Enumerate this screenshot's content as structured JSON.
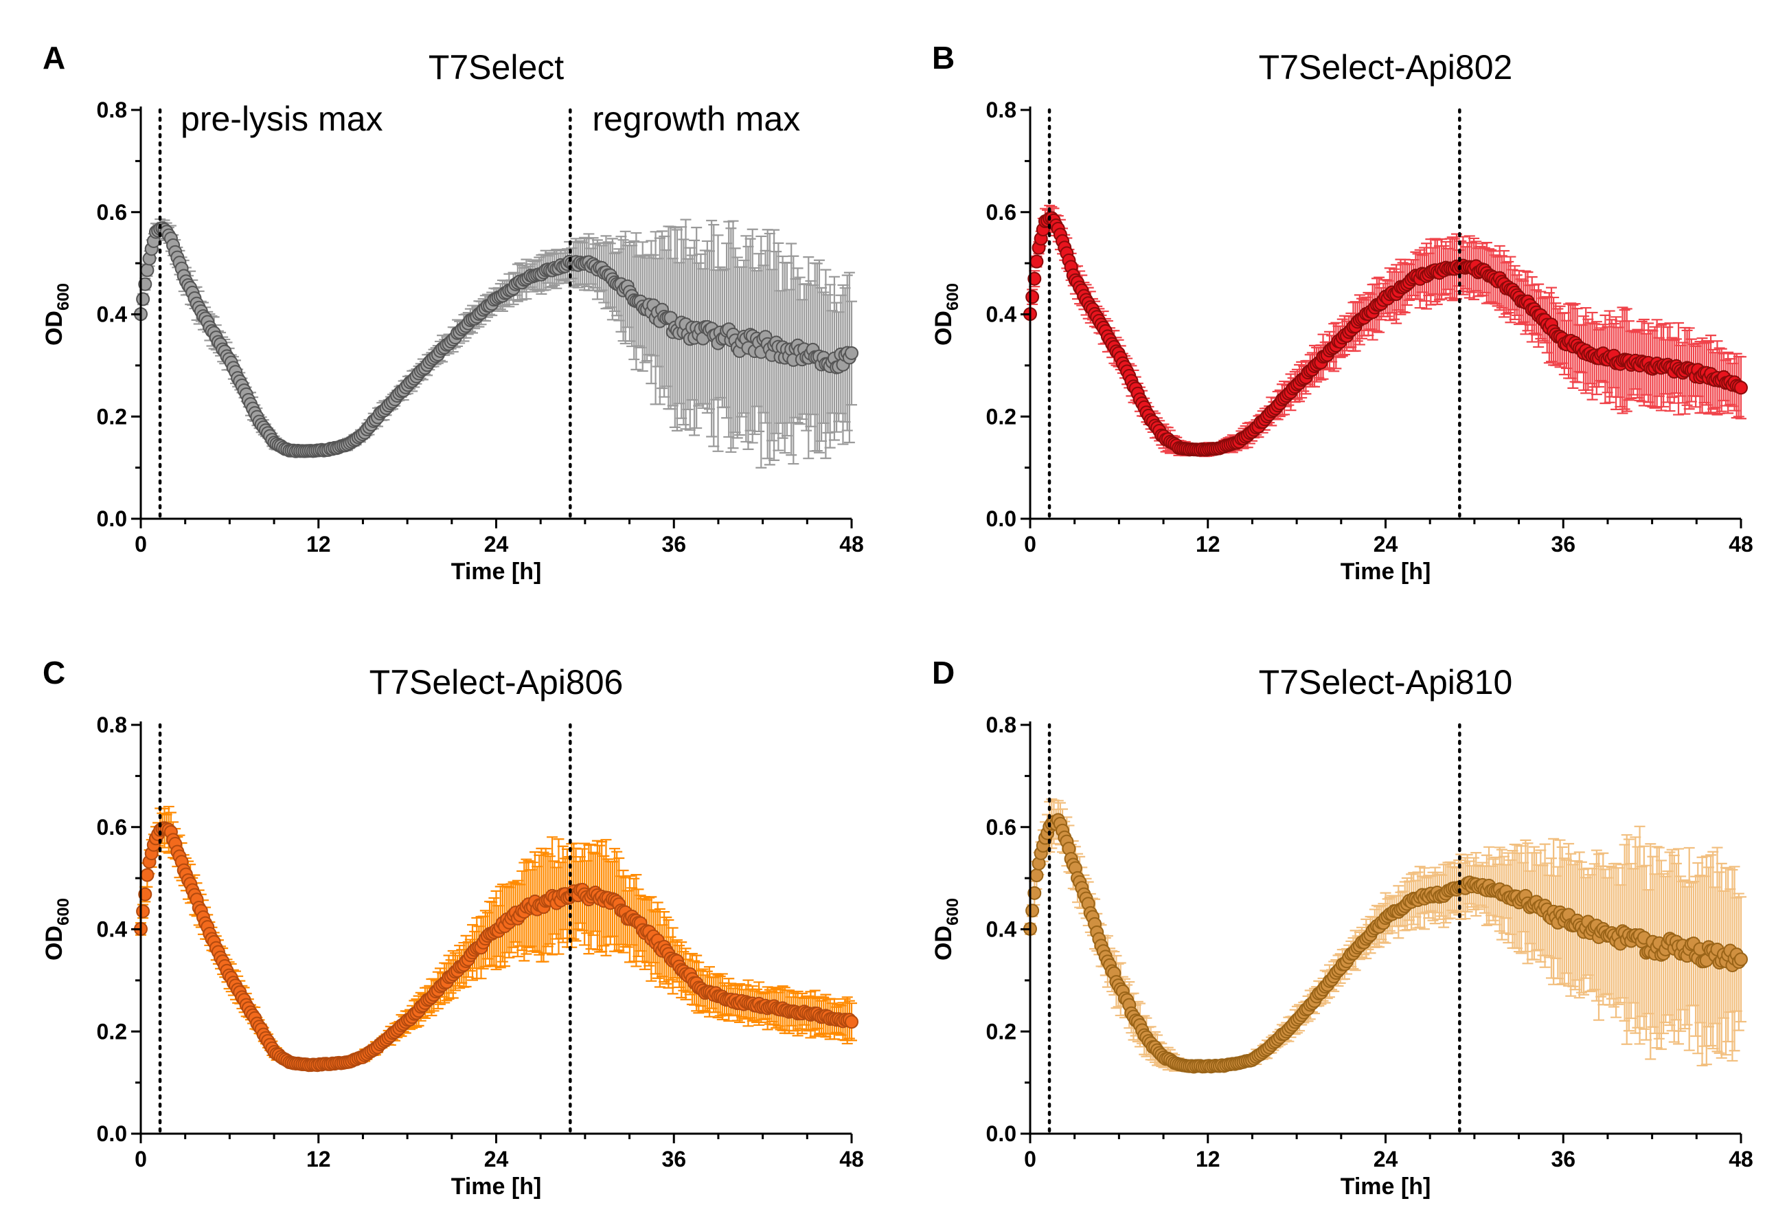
{
  "figure": {
    "panels": [
      {
        "letter": "A",
        "title": "T7Select",
        "annotations": [
          "pre-lysis max",
          "regrowth max"
        ],
        "colors": {
          "fill": "#a0a0a0",
          "stroke": "#555555",
          "err": "#9a9a9a"
        }
      },
      {
        "letter": "B",
        "title": "T7Select-Api802",
        "annotations": [],
        "colors": {
          "fill": "#e8141e",
          "stroke": "#8a0a0a",
          "err": "#f0434a"
        }
      },
      {
        "letter": "C",
        "title": "T7Select-Api806",
        "annotations": [],
        "colors": {
          "fill": "#f36a1c",
          "stroke": "#b34a0e",
          "err": "#ff8a00"
        }
      },
      {
        "letter": "D",
        "title": "T7Select-Api810",
        "annotations": [],
        "colors": {
          "fill": "#d09040",
          "stroke": "#9a6418",
          "err": "#f2bf7f"
        }
      }
    ]
  },
  "chart_data": [
    {
      "type": "scatter",
      "title": "T7Select",
      "xlabel": "Time [h]",
      "ylabel": "OD600",
      "xlim": [
        0,
        48
      ],
      "ylim": [
        0,
        0.8
      ],
      "xticks": [
        0,
        12,
        24,
        36,
        48
      ],
      "yticks": [
        0.0,
        0.2,
        0.4,
        0.6,
        0.8
      ],
      "reference_lines_x": [
        1.3,
        29.0
      ],
      "annotations": [
        "pre-lysis max",
        "regrowth max"
      ],
      "series": [
        {
          "name": "T7Select",
          "x": [
            0,
            0.5,
            1,
            1.5,
            2,
            3,
            4,
            5,
            6,
            7,
            8,
            9,
            10,
            11,
            12,
            13,
            14,
            15,
            16,
            18,
            20,
            22,
            24,
            26,
            28,
            29,
            30,
            31,
            32,
            34,
            36,
            38,
            40,
            42,
            44,
            46,
            48
          ],
          "y": [
            0.4,
            0.5,
            0.56,
            0.57,
            0.55,
            0.47,
            0.41,
            0.36,
            0.31,
            0.25,
            0.19,
            0.15,
            0.133,
            0.132,
            0.133,
            0.137,
            0.145,
            0.165,
            0.2,
            0.26,
            0.32,
            0.38,
            0.43,
            0.47,
            0.49,
            0.5,
            0.5,
            0.49,
            0.47,
            0.42,
            0.38,
            0.36,
            0.35,
            0.34,
            0.33,
            0.31,
            0.31
          ],
          "err": [
            0.01,
            0.015,
            0.015,
            0.015,
            0.02,
            0.025,
            0.025,
            0.025,
            0.02,
            0.02,
            0.015,
            0.01,
            0.005,
            0.005,
            0.005,
            0.005,
            0.01,
            0.01,
            0.015,
            0.015,
            0.02,
            0.02,
            0.025,
            0.03,
            0.03,
            0.035,
            0.04,
            0.05,
            0.07,
            0.12,
            0.15,
            0.17,
            0.18,
            0.18,
            0.17,
            0.15,
            0.13
          ]
        }
      ]
    },
    {
      "type": "scatter",
      "title": "T7Select-Api802",
      "xlabel": "Time [h]",
      "ylabel": "OD600",
      "xlim": [
        0,
        48
      ],
      "ylim": [
        0,
        0.8
      ],
      "xticks": [
        0,
        12,
        24,
        36,
        48
      ],
      "yticks": [
        0.0,
        0.2,
        0.4,
        0.6,
        0.8
      ],
      "reference_lines_x": [
        1.3,
        29.0
      ],
      "series": [
        {
          "name": "T7Select-Api802",
          "x": [
            0,
            0.5,
            1,
            1.5,
            2,
            3,
            4,
            5,
            6,
            7,
            8,
            9,
            10,
            11,
            12,
            13,
            14,
            15,
            16,
            18,
            20,
            22,
            24,
            26,
            28,
            29,
            30,
            31,
            32,
            34,
            36,
            38,
            40,
            42,
            44,
            46,
            48
          ],
          "y": [
            0.4,
            0.52,
            0.58,
            0.59,
            0.56,
            0.47,
            0.42,
            0.37,
            0.32,
            0.26,
            0.2,
            0.16,
            0.14,
            0.135,
            0.135,
            0.14,
            0.15,
            0.17,
            0.2,
            0.26,
            0.32,
            0.38,
            0.43,
            0.47,
            0.49,
            0.49,
            0.49,
            0.48,
            0.46,
            0.41,
            0.35,
            0.32,
            0.31,
            0.3,
            0.29,
            0.28,
            0.26
          ],
          "err": [
            0.01,
            0.015,
            0.02,
            0.02,
            0.025,
            0.025,
            0.025,
            0.025,
            0.025,
            0.025,
            0.02,
            0.02,
            0.015,
            0.01,
            0.01,
            0.01,
            0.015,
            0.02,
            0.02,
            0.03,
            0.035,
            0.04,
            0.045,
            0.05,
            0.05,
            0.05,
            0.05,
            0.05,
            0.05,
            0.05,
            0.06,
            0.07,
            0.08,
            0.07,
            0.07,
            0.06,
            0.05
          ]
        }
      ]
    },
    {
      "type": "scatter",
      "title": "T7Select-Api806",
      "xlabel": "Time [h]",
      "ylabel": "OD600",
      "xlim": [
        0,
        48
      ],
      "ylim": [
        0,
        0.8
      ],
      "xticks": [
        0,
        12,
        24,
        36,
        48
      ],
      "yticks": [
        0.0,
        0.2,
        0.4,
        0.6,
        0.8
      ],
      "reference_lines_x": [
        1.3,
        29.0
      ],
      "series": [
        {
          "name": "T7Select-Api806",
          "x": [
            0,
            0.5,
            1,
            1.5,
            2,
            3,
            4,
            5,
            6,
            7,
            8,
            9,
            10,
            11,
            12,
            13,
            14,
            15,
            16,
            18,
            20,
            22,
            24,
            26,
            28,
            29,
            30,
            31,
            32,
            34,
            36,
            38,
            40,
            42,
            44,
            46,
            48
          ],
          "y": [
            0.4,
            0.52,
            0.58,
            0.6,
            0.59,
            0.51,
            0.44,
            0.37,
            0.31,
            0.26,
            0.21,
            0.16,
            0.14,
            0.135,
            0.135,
            0.137,
            0.14,
            0.15,
            0.17,
            0.22,
            0.28,
            0.34,
            0.4,
            0.44,
            0.46,
            0.47,
            0.47,
            0.46,
            0.45,
            0.4,
            0.34,
            0.28,
            0.26,
            0.25,
            0.24,
            0.23,
            0.22
          ],
          "err": [
            0.01,
            0.02,
            0.03,
            0.035,
            0.035,
            0.03,
            0.03,
            0.025,
            0.025,
            0.02,
            0.015,
            0.01,
            0.005,
            0.005,
            0.005,
            0.005,
            0.005,
            0.01,
            0.01,
            0.02,
            0.03,
            0.04,
            0.06,
            0.08,
            0.09,
            0.09,
            0.09,
            0.09,
            0.085,
            0.07,
            0.05,
            0.04,
            0.035,
            0.035,
            0.035,
            0.035,
            0.035
          ]
        }
      ]
    },
    {
      "type": "scatter",
      "title": "T7Select-Api810",
      "xlabel": "Time [h]",
      "ylabel": "OD600",
      "xlim": [
        0,
        48
      ],
      "ylim": [
        0,
        0.8
      ],
      "xticks": [
        0,
        12,
        24,
        36,
        48
      ],
      "yticks": [
        0.0,
        0.2,
        0.4,
        0.6,
        0.8
      ],
      "reference_lines_x": [
        1.3,
        29.0
      ],
      "series": [
        {
          "name": "T7Select-Api810",
          "x": [
            0,
            0.5,
            1,
            1.5,
            2,
            3,
            4,
            5,
            6,
            7,
            8,
            9,
            10,
            11,
            12,
            13,
            14,
            15,
            16,
            18,
            20,
            22,
            24,
            26,
            28,
            29,
            30,
            31,
            32,
            34,
            36,
            38,
            40,
            42,
            44,
            46,
            48
          ],
          "y": [
            0.4,
            0.52,
            0.58,
            0.61,
            0.61,
            0.52,
            0.44,
            0.35,
            0.29,
            0.23,
            0.18,
            0.15,
            0.135,
            0.132,
            0.132,
            0.133,
            0.137,
            0.145,
            0.165,
            0.22,
            0.29,
            0.36,
            0.42,
            0.46,
            0.47,
            0.48,
            0.49,
            0.48,
            0.47,
            0.45,
            0.42,
            0.4,
            0.38,
            0.37,
            0.36,
            0.35,
            0.34
          ],
          "err": [
            0.01,
            0.025,
            0.035,
            0.04,
            0.04,
            0.04,
            0.04,
            0.04,
            0.04,
            0.04,
            0.03,
            0.02,
            0.01,
            0.005,
            0.005,
            0.005,
            0.005,
            0.01,
            0.015,
            0.02,
            0.025,
            0.03,
            0.04,
            0.045,
            0.05,
            0.05,
            0.05,
            0.06,
            0.07,
            0.1,
            0.12,
            0.14,
            0.16,
            0.17,
            0.17,
            0.16,
            0.14
          ]
        }
      ]
    }
  ]
}
